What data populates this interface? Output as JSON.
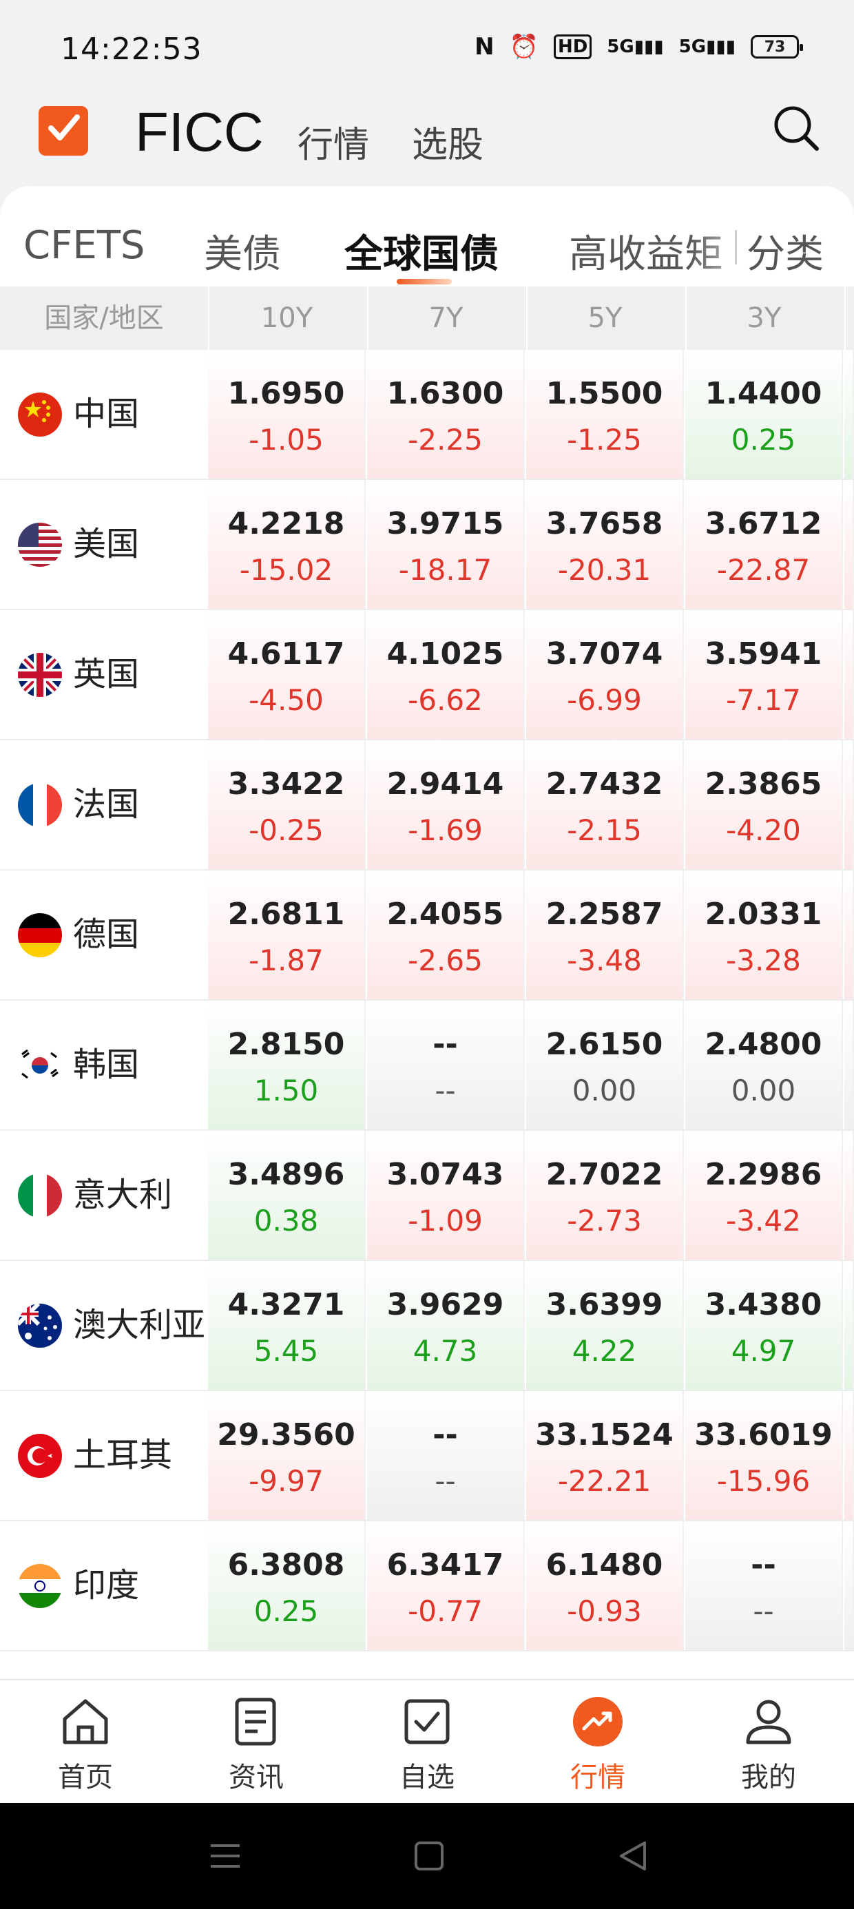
{
  "status": {
    "time": "14:22:53",
    "battery": "73",
    "net_icons": [
      "N",
      "alarm-icon",
      "HD2",
      "5G",
      "5G"
    ]
  },
  "header": {
    "title": "FICC",
    "nav": [
      "行情",
      "选股"
    ]
  },
  "tabs": [
    {
      "label": "CFETS"
    },
    {
      "label": "美债"
    },
    {
      "label": "全球国债"
    },
    {
      "label": "高收益矩"
    },
    {
      "label": "分类"
    }
  ],
  "table": {
    "headers": [
      "国家/地区",
      "10Y",
      "7Y",
      "5Y",
      "3Y"
    ],
    "rows": [
      {
        "country": "中国",
        "flag": "china-flag-icon",
        "cells": [
          {
            "y": "1.6950",
            "c": "-1.05",
            "t": "red"
          },
          {
            "y": "1.6300",
            "c": "-2.25",
            "t": "red"
          },
          {
            "y": "1.5500",
            "c": "-1.25",
            "t": "red"
          },
          {
            "y": "1.4400",
            "c": "0.25",
            "t": "green"
          }
        ]
      },
      {
        "country": "美国",
        "flag": "usa-flag-icon",
        "cells": [
          {
            "y": "4.2218",
            "c": "-15.02",
            "t": "red"
          },
          {
            "y": "3.9715",
            "c": "-18.17",
            "t": "red"
          },
          {
            "y": "3.7658",
            "c": "-20.31",
            "t": "red"
          },
          {
            "y": "3.6712",
            "c": "-22.87",
            "t": "red"
          }
        ]
      },
      {
        "country": "英国",
        "flag": "uk-flag-icon",
        "cells": [
          {
            "y": "4.6117",
            "c": "-4.50",
            "t": "red"
          },
          {
            "y": "4.1025",
            "c": "-6.62",
            "t": "red"
          },
          {
            "y": "3.7074",
            "c": "-6.99",
            "t": "red"
          },
          {
            "y": "3.5941",
            "c": "-7.17",
            "t": "red"
          }
        ]
      },
      {
        "country": "法国",
        "flag": "france-flag-icon",
        "cells": [
          {
            "y": "3.3422",
            "c": "-0.25",
            "t": "red"
          },
          {
            "y": "2.9414",
            "c": "-1.69",
            "t": "red"
          },
          {
            "y": "2.7432",
            "c": "-2.15",
            "t": "red"
          },
          {
            "y": "2.3865",
            "c": "-4.20",
            "t": "red"
          }
        ]
      },
      {
        "country": "德国",
        "flag": "germany-flag-icon",
        "cells": [
          {
            "y": "2.6811",
            "c": "-1.87",
            "t": "red"
          },
          {
            "y": "2.4055",
            "c": "-2.65",
            "t": "red"
          },
          {
            "y": "2.2587",
            "c": "-3.48",
            "t": "red"
          },
          {
            "y": "2.0331",
            "c": "-3.28",
            "t": "red"
          }
        ]
      },
      {
        "country": "韩国",
        "flag": "korea-flag-icon",
        "cells": [
          {
            "y": "2.8150",
            "c": "1.50",
            "t": "green"
          },
          {
            "y": "--",
            "c": "--",
            "t": "gray"
          },
          {
            "y": "2.6150",
            "c": "0.00",
            "t": "gray"
          },
          {
            "y": "2.4800",
            "c": "0.00",
            "t": "gray"
          }
        ]
      },
      {
        "country": "意大利",
        "flag": "italy-flag-icon",
        "cells": [
          {
            "y": "3.4896",
            "c": "0.38",
            "t": "green"
          },
          {
            "y": "3.0743",
            "c": "-1.09",
            "t": "red"
          },
          {
            "y": "2.7022",
            "c": "-2.73",
            "t": "red"
          },
          {
            "y": "2.2986",
            "c": "-3.42",
            "t": "red"
          }
        ]
      },
      {
        "country": "澳大利亚",
        "flag": "australia-flag-icon",
        "cells": [
          {
            "y": "4.3271",
            "c": "5.45",
            "t": "green"
          },
          {
            "y": "3.9629",
            "c": "4.73",
            "t": "green"
          },
          {
            "y": "3.6399",
            "c": "4.22",
            "t": "green"
          },
          {
            "y": "3.4380",
            "c": "4.97",
            "t": "green"
          }
        ]
      },
      {
        "country": "土耳其",
        "flag": "turkey-flag-icon",
        "cells": [
          {
            "y": "29.3560",
            "c": "-9.97",
            "t": "red"
          },
          {
            "y": "--",
            "c": "--",
            "t": "gray"
          },
          {
            "y": "33.1524",
            "c": "-22.21",
            "t": "red"
          },
          {
            "y": "33.6019",
            "c": "-15.96",
            "t": "red"
          }
        ]
      },
      {
        "country": "印度",
        "flag": "india-flag-icon",
        "cells": [
          {
            "y": "6.3808",
            "c": "0.25",
            "t": "green"
          },
          {
            "y": "6.3417",
            "c": "-0.77",
            "t": "red"
          },
          {
            "y": "6.1480",
            "c": "-0.93",
            "t": "red"
          },
          {
            "y": "--",
            "c": "--",
            "t": "gray"
          }
        ]
      }
    ]
  },
  "bottom_nav": [
    {
      "label": "首页",
      "icon": "home-icon"
    },
    {
      "label": "资讯",
      "icon": "news-icon"
    },
    {
      "label": "自选",
      "icon": "watchlist-icon"
    },
    {
      "label": "行情",
      "icon": "market-icon",
      "active": true
    },
    {
      "label": "我的",
      "icon": "profile-icon"
    }
  ],
  "colors": {
    "accent": "#f05a1f",
    "up": "#e0352b",
    "down": "#1aa01a"
  }
}
